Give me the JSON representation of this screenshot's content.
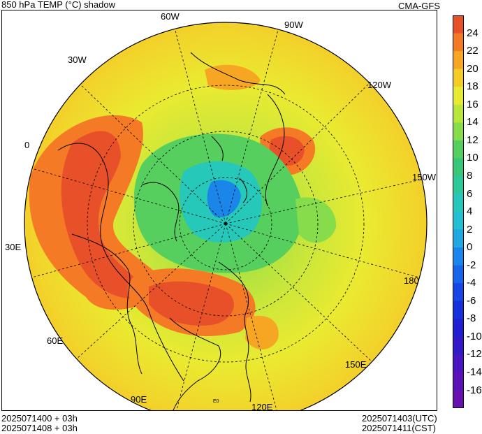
{
  "header": {
    "title": "850 hPa TEMP (°C) shadow",
    "source": "CMA-GFS"
  },
  "footer": {
    "left_line1": "2025071400 + 03h",
    "left_line2": "2025071408 + 03h",
    "right_line1": "2025071403(UTC)",
    "right_line2": "2025071411(CST)"
  },
  "map": {
    "projection": "north-polar-stereographic",
    "longitude_labels": [
      "60W",
      "90W",
      "30W",
      "120W",
      "0",
      "150W",
      "30E",
      "180",
      "60E",
      "150E",
      "90E",
      "120E"
    ],
    "corner_marker": "E0"
  },
  "colorbar": {
    "levels": [
      "24",
      "22",
      "20",
      "18",
      "16",
      "14",
      "12",
      "10",
      "8",
      "6",
      "4",
      "2",
      "0",
      "-2",
      "-4",
      "-6",
      "-8",
      "-10",
      "-12",
      "-14",
      "-16"
    ],
    "colors": [
      "#e8502a",
      "#f47a26",
      "#f6a623",
      "#f3cc28",
      "#e6ea30",
      "#b8e63a",
      "#86dc4a",
      "#56cf5e",
      "#37c779",
      "#2cc89a",
      "#26c8b9",
      "#22c0d2",
      "#1fa8e2",
      "#1a86ea",
      "#1766ea",
      "#1546e6",
      "#1630dc",
      "#2020d2",
      "#3518c8",
      "#4a14c0",
      "#5a12b8",
      "#6a10b0"
    ]
  }
}
